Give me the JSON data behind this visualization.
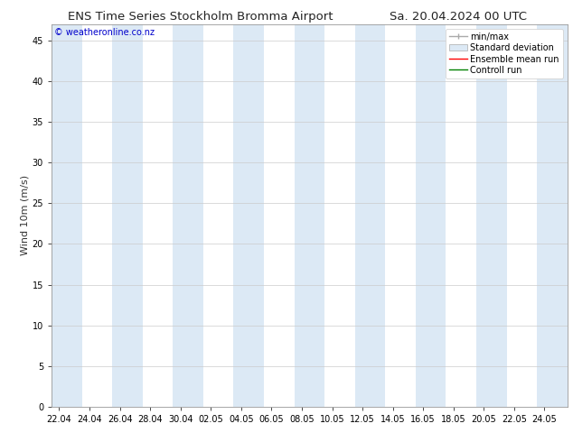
{
  "title_left": "ENS Time Series Stockholm Bromma Airport",
  "title_right": "Sa. 20.04.2024 00 UTC",
  "ylabel": "Wind 10m (m/s)",
  "watermark": "© weatheronline.co.nz",
  "ylim": [
    0,
    47
  ],
  "yticks": [
    0,
    5,
    10,
    15,
    20,
    25,
    30,
    35,
    40,
    45
  ],
  "x_tick_labels": [
    "22.04",
    "24.04",
    "26.04",
    "28.04",
    "30.04",
    "02.05",
    "04.05",
    "06.05",
    "08.05",
    "10.05",
    "12.05",
    "14.05",
    "16.05",
    "18.05",
    "20.05",
    "22.05",
    "24.05"
  ],
  "background_color": "#ffffff",
  "plot_bg_color": "#ffffff",
  "shaded_band_color": "#dce9f5",
  "legend_labels": [
    "min/max",
    "Standard deviation",
    "Ensemble mean run",
    "Controll run"
  ],
  "legend_line_color": "#aaaaaa",
  "legend_patch_color": "#dce9f5",
  "legend_red": "#ff0000",
  "legend_green": "#008000",
  "title_fontsize": 9.5,
  "ylabel_fontsize": 8,
  "tick_fontsize": 7,
  "legend_fontsize": 7,
  "watermark_fontsize": 7,
  "n_points": 34,
  "n_shaded": 17
}
